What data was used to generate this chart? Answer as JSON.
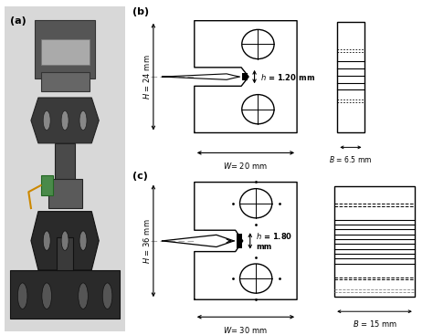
{
  "bg_color": "#ffffff",
  "panel_a_label": "(a)",
  "panel_b_label": "(b)",
  "panel_c_label": "(c)",
  "b_H": "$H$ = 24 mm",
  "b_W": "$W$= 20 mm",
  "b_h": "$h$ = 1.20 mm",
  "b_B": "$B$ = 6.5 mm",
  "c_H": "$H$ = 36 mm",
  "c_W": "$W$= 30 mm",
  "c_h": "$h$ = 1.80\nmm",
  "c_B": "$B$ = 15 mm",
  "lc": "#000000",
  "gray": "#aaaaaa",
  "photo_bg": "#cccccc",
  "photo_dark": "#444444",
  "photo_mid": "#888888"
}
